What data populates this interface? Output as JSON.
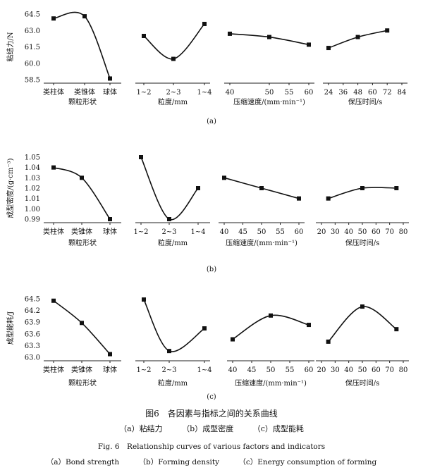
{
  "figure": {
    "caption_zh_title": "图6　各因素与指标之间的关系曲线",
    "caption_zh_sub": [
      "（a）粘结力",
      "（b）成型密度",
      "（c）成型能耗"
    ],
    "caption_en_title": "Fig. 6　Relationship curves of various factors and indicators",
    "caption_en_sub": [
      "（a）Bond strength",
      "（b）Forming density",
      "（c）Energy consumption of forming"
    ]
  },
  "chart_data": [
    {
      "type": "line",
      "panel_label": "(a)",
      "ylabel": "粘结力/N",
      "yticks": [
        "64.5",
        "63.0",
        "61.5",
        "60.0",
        "58.5"
      ],
      "ylim": [
        58.5,
        64.5
      ],
      "groups": [
        {
          "xlabel": "颗粒形状",
          "axis": "categorical",
          "categories": [
            "类柱体",
            "类锥体",
            "球体"
          ],
          "values": [
            64.1,
            64.3,
            58.6
          ]
        },
        {
          "xlabel": "粒度/mm",
          "axis": "categorical",
          "categories": [
            "1~2",
            "2~3",
            "1~4"
          ],
          "values": [
            62.5,
            60.4,
            63.6
          ]
        },
        {
          "xlabel": "压缩速度/(mm·min⁻¹)",
          "axis": "numeric",
          "xticks": [
            "40",
            "50",
            "55",
            "60"
          ],
          "tick_values": [
            40,
            50,
            55,
            60
          ],
          "x": [
            40,
            50,
            60
          ],
          "values": [
            62.7,
            62.4,
            61.7
          ]
        },
        {
          "xlabel": "保压时间/s",
          "axis": "numeric",
          "xticks": [
            "24",
            "36",
            "48",
            "60",
            "72",
            "84"
          ],
          "tick_values": [
            24,
            36,
            48,
            60,
            72,
            84
          ],
          "x": [
            24,
            48,
            72
          ],
          "values": [
            61.4,
            62.4,
            63.0
          ]
        }
      ]
    },
    {
      "type": "line",
      "panel_label": "(b)",
      "ylabel": "成型密度/(g·cm⁻³)",
      "yticks": [
        "1.05",
        "1.04",
        "1.03",
        "1.02",
        "1.01",
        "1.00",
        "0.99"
      ],
      "ylim": [
        0.99,
        1.05
      ],
      "groups": [
        {
          "xlabel": "颗粒形状",
          "axis": "categorical",
          "categories": [
            "类柱体",
            "类锥体",
            "球体"
          ],
          "values": [
            1.04,
            1.03,
            0.99
          ]
        },
        {
          "xlabel": "粒度/mm",
          "axis": "categorical",
          "categories": [
            "1~2",
            "2~3",
            "1~4"
          ],
          "values": [
            1.05,
            0.99,
            1.02
          ]
        },
        {
          "xlabel": "压缩速度/(mm·min⁻¹)",
          "axis": "numeric",
          "xticks": [
            "40",
            "45",
            "50",
            "55",
            "60"
          ],
          "tick_values": [
            40,
            45,
            50,
            55,
            60
          ],
          "x": [
            40,
            50,
            60
          ],
          "values": [
            1.03,
            1.02,
            1.01
          ]
        },
        {
          "xlabel": "保压时间/s",
          "axis": "numeric",
          "xticks": [
            "20",
            "30",
            "40",
            "50",
            "60",
            "70",
            "80"
          ],
          "tick_values": [
            20,
            30,
            40,
            50,
            60,
            70,
            80
          ],
          "x": [
            25,
            50,
            75
          ],
          "values": [
            1.01,
            1.02,
            1.02
          ]
        }
      ]
    },
    {
      "type": "line",
      "panel_label": "(c)",
      "ylabel": "成型能耗/J",
      "yticks": [
        "64.5",
        "64.2",
        "63.9",
        "63.6",
        "63.3",
        "63.0"
      ],
      "ylim": [
        63.0,
        64.5
      ],
      "groups": [
        {
          "xlabel": "颗粒形状",
          "axis": "categorical",
          "categories": [
            "类柱体",
            "类锥体",
            "球体"
          ],
          "values": [
            64.45,
            63.88,
            63.08
          ]
        },
        {
          "xlabel": "粒度/mm",
          "axis": "categorical",
          "categories": [
            "1~2",
            "2~3",
            "1~4"
          ],
          "values": [
            64.48,
            63.16,
            63.74
          ]
        },
        {
          "xlabel": "压缩速度/(mm·min⁻¹)",
          "axis": "numeric",
          "xticks": [
            "40",
            "45",
            "50",
            "55",
            "60"
          ],
          "tick_values": [
            40,
            45,
            50,
            55,
            60
          ],
          "x": [
            40,
            50,
            60
          ],
          "values": [
            63.46,
            64.07,
            63.83
          ]
        },
        {
          "xlabel": "保压时间/s",
          "axis": "numeric",
          "xticks": [
            "20",
            "30",
            "40",
            "50",
            "60",
            "70",
            "80"
          ],
          "tick_values": [
            20,
            30,
            40,
            50,
            60,
            70,
            80
          ],
          "x": [
            25,
            50,
            75
          ],
          "values": [
            63.4,
            64.3,
            63.72
          ]
        }
      ]
    }
  ]
}
